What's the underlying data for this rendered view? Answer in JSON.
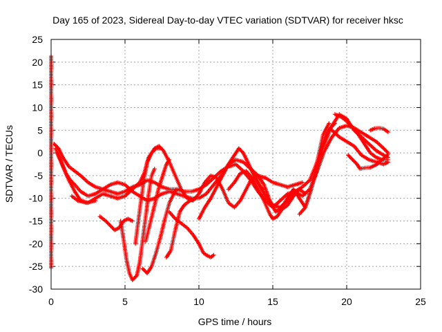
{
  "chart_data": {
    "type": "scatter",
    "title": "Day 165 of 2023, Sidereal Day-to-day VTEC variation (SDTVAR) for receiver hksc",
    "xlabel": "GPS time / hours",
    "ylabel": "SDTVAR / TECUs",
    "xlim": [
      0,
      25
    ],
    "ylim": [
      -30,
      25
    ],
    "xticks": [
      0,
      5,
      10,
      15,
      20,
      25
    ],
    "yticks": [
      -30,
      -25,
      -20,
      -15,
      -10,
      -5,
      0,
      5,
      10,
      15,
      20,
      25
    ],
    "grid": true,
    "legend": "none",
    "marker_color": "#ff0000",
    "series": [
      {
        "values": [
          [
            0.0,
            21.3
          ],
          [
            0.0,
            3.0
          ],
          [
            0.0,
            1.0
          ],
          [
            0.0,
            -6.0
          ],
          [
            0.0,
            -25.3
          ]
        ]
      },
      {
        "values": [
          [
            0.2,
            2.0
          ],
          [
            0.5,
            1.0
          ],
          [
            0.8,
            -1.0
          ],
          [
            1.2,
            -3.0
          ],
          [
            1.6,
            -4.0
          ],
          [
            2.0,
            -5.0
          ],
          [
            2.5,
            -6.5
          ],
          [
            3.0,
            -7.5
          ],
          [
            3.5,
            -8.0
          ],
          [
            4.0,
            -8.5
          ],
          [
            4.5,
            -9.0
          ],
          [
            5.0,
            -8.5
          ],
          [
            5.5,
            -7.5
          ],
          [
            6.0,
            -7.0
          ],
          [
            6.5,
            -6.0
          ],
          [
            7.0,
            -6.5
          ],
          [
            7.5,
            -7.5
          ],
          [
            8.0,
            -8.0
          ],
          [
            8.5,
            -8.0
          ],
          [
            9.0,
            -8.5
          ],
          [
            9.5,
            -8.5
          ],
          [
            10.0,
            -8.0
          ],
          [
            10.5,
            -7.0
          ],
          [
            11.0,
            -5.5
          ],
          [
            11.5,
            -4.0
          ],
          [
            12.0,
            -3.0
          ],
          [
            12.5,
            -2.5
          ],
          [
            13.0,
            -4.0
          ],
          [
            13.5,
            -6.0
          ],
          [
            14.0,
            -8.5
          ],
          [
            14.5,
            -10.5
          ],
          [
            15.0,
            -12.0
          ],
          [
            15.5,
            -10.5
          ],
          [
            16.0,
            -9.0
          ],
          [
            16.5,
            -8.5
          ],
          [
            17.0,
            -9.5
          ],
          [
            17.5,
            -8.0
          ],
          [
            18.0,
            -4.0
          ],
          [
            18.5,
            0.5
          ],
          [
            19.0,
            3.5
          ],
          [
            19.5,
            5.5
          ],
          [
            20.0,
            6.0
          ],
          [
            20.5,
            5.5
          ],
          [
            21.0,
            4.5
          ],
          [
            21.5,
            3.5
          ],
          [
            22.0,
            2.5
          ],
          [
            22.5,
            1.0
          ],
          [
            22.8,
            0.0
          ]
        ]
      },
      {
        "values": [
          [
            0.3,
            1.0
          ],
          [
            0.7,
            -2.0
          ],
          [
            1.0,
            -4.5
          ],
          [
            1.3,
            -6.0
          ],
          [
            1.6,
            -7.0
          ],
          [
            2.0,
            -8.5
          ],
          [
            2.5,
            -9.5
          ],
          [
            3.0,
            -9.0
          ],
          [
            3.5,
            -8.0
          ],
          [
            4.0,
            -7.0
          ],
          [
            4.5,
            -6.5
          ],
          [
            5.0,
            -7.0
          ],
          [
            5.5,
            -8.5
          ],
          [
            6.0,
            -9.5
          ],
          [
            6.5,
            -10.5
          ],
          [
            7.0,
            -10.0
          ],
          [
            7.5,
            -9.0
          ],
          [
            8.0,
            -8.5
          ],
          [
            8.5,
            -9.0
          ],
          [
            9.0,
            -9.5
          ],
          [
            9.5,
            -10.0
          ],
          [
            10.0,
            -10.0
          ],
          [
            10.5,
            -9.0
          ],
          [
            11.0,
            -7.0
          ],
          [
            11.5,
            -5.0
          ],
          [
            12.0,
            -2.5
          ],
          [
            12.5,
            -1.5
          ],
          [
            13.0,
            -2.0
          ],
          [
            13.5,
            -3.5
          ],
          [
            14.0,
            -6.5
          ],
          [
            14.5,
            -9.5
          ],
          [
            15.0,
            -11.5
          ],
          [
            15.5,
            -12.0
          ],
          [
            16.0,
            -10.5
          ],
          [
            16.5,
            -8.5
          ],
          [
            17.0,
            -7.5
          ],
          [
            17.5,
            -6.0
          ],
          [
            18.0,
            -2.0
          ],
          [
            18.5,
            2.0
          ],
          [
            19.0,
            6.0
          ],
          [
            19.5,
            8.5
          ],
          [
            20.0,
            7.5
          ],
          [
            20.5,
            5.0
          ],
          [
            21.0,
            3.5
          ],
          [
            21.5,
            2.0
          ],
          [
            22.0,
            0.5
          ],
          [
            22.5,
            -0.5
          ],
          [
            22.8,
            -1.0
          ]
        ]
      },
      {
        "values": [
          [
            0.4,
            0.0
          ],
          [
            0.8,
            -3.0
          ],
          [
            1.2,
            -6.0
          ],
          [
            1.6,
            -8.5
          ],
          [
            2.0,
            -10.5
          ],
          [
            2.5,
            -11.0
          ],
          [
            3.0,
            -10.0
          ],
          [
            3.5,
            -9.0
          ],
          [
            4.0,
            -9.5
          ],
          [
            4.5,
            -10.0
          ],
          [
            5.0,
            -9.5
          ],
          [
            5.5,
            -8.0
          ],
          [
            6.0,
            -6.5
          ],
          [
            6.3,
            -4.5
          ],
          [
            6.6,
            -1.0
          ],
          [
            7.0,
            1.0
          ],
          [
            7.3,
            1.5
          ],
          [
            7.6,
            0.5
          ],
          [
            8.0,
            -2.0
          ],
          [
            8.4,
            -5.0
          ],
          [
            8.8,
            -8.0
          ],
          [
            9.2,
            -10.0
          ],
          [
            9.6,
            -10.5
          ],
          [
            10.0,
            -9.0
          ],
          [
            10.4,
            -6.5
          ],
          [
            10.8,
            -5.0
          ],
          [
            11.2,
            -5.5
          ],
          [
            11.6,
            -8.0
          ],
          [
            12.0,
            -11.0
          ],
          [
            12.4,
            -12.0
          ],
          [
            12.8,
            -10.5
          ],
          [
            13.2,
            -8.0
          ],
          [
            13.6,
            -5.5
          ],
          [
            14.0,
            -5.0
          ],
          [
            14.4,
            -7.0
          ],
          [
            14.8,
            -10.5
          ],
          [
            15.2,
            -13.0
          ],
          [
            15.6,
            -12.0
          ],
          [
            16.0,
            -10.0
          ],
          [
            16.4,
            -8.0
          ],
          [
            16.8,
            -10.0
          ],
          [
            17.2,
            -12.0
          ],
          [
            17.6,
            -8.0
          ],
          [
            18.0,
            -2.0
          ],
          [
            18.4,
            4.0
          ],
          [
            18.8,
            6.5
          ]
        ]
      },
      {
        "values": [
          [
            1.4,
            -9.5
          ],
          [
            1.8,
            -10.5
          ],
          [
            2.4,
            -11.0
          ],
          [
            3.0,
            -10.5
          ]
        ]
      },
      {
        "values": [
          [
            3.3,
            -14.0
          ],
          [
            3.7,
            -15.0
          ],
          [
            4.0,
            -16.0
          ],
          [
            4.3,
            -17.0
          ],
          [
            4.6,
            -16.5
          ],
          [
            4.9,
            -15.0
          ],
          [
            5.2,
            -14.5
          ],
          [
            5.5,
            -15.0
          ]
        ]
      },
      {
        "values": [
          [
            4.7,
            -15.0
          ],
          [
            4.9,
            -19.0
          ],
          [
            5.1,
            -23.5
          ],
          [
            5.3,
            -26.5
          ],
          [
            5.5,
            -28.0
          ],
          [
            5.8,
            -27.0
          ],
          [
            6.0,
            -24.0
          ],
          [
            6.2,
            -19.0
          ],
          [
            6.4,
            -14.0
          ],
          [
            6.6,
            -9.0
          ],
          [
            6.8,
            -5.0
          ],
          [
            7.0,
            -3.5
          ]
        ]
      },
      {
        "values": [
          [
            5.7,
            -20.0
          ],
          [
            5.9,
            -15.0
          ],
          [
            6.1,
            -10.0
          ],
          [
            6.3,
            -5.5
          ],
          [
            6.5,
            -2.0
          ],
          [
            6.8,
            0.0
          ],
          [
            7.1,
            1.0
          ],
          [
            7.4,
            1.0
          ]
        ]
      },
      {
        "values": [
          [
            6.2,
            -25.5
          ],
          [
            6.5,
            -26.5
          ],
          [
            6.8,
            -25.0
          ],
          [
            7.1,
            -22.0
          ],
          [
            7.4,
            -18.5
          ],
          [
            7.7,
            -14.5
          ],
          [
            8.0,
            -11.0
          ],
          [
            8.3,
            -9.0
          ],
          [
            8.5,
            -8.0
          ]
        ]
      },
      {
        "values": [
          [
            6.4,
            -19.5
          ],
          [
            6.7,
            -15.5
          ],
          [
            7.0,
            -11.5
          ],
          [
            7.3,
            -7.5
          ],
          [
            7.6,
            -4.5
          ],
          [
            7.8,
            -2.5
          ],
          [
            8.0,
            -1.5
          ]
        ]
      },
      {
        "values": [
          [
            7.8,
            -23.0
          ],
          [
            8.1,
            -21.5
          ],
          [
            8.4,
            -17.0
          ],
          [
            8.7,
            -13.0
          ],
          [
            9.0,
            -11.5
          ],
          [
            9.4,
            -10.5
          ],
          [
            9.8,
            -10.0
          ]
        ]
      },
      {
        "values": [
          [
            8.0,
            -13.0
          ],
          [
            8.4,
            -14.5
          ],
          [
            8.8,
            -15.5
          ],
          [
            9.2,
            -16.5
          ],
          [
            9.6,
            -18.0
          ],
          [
            10.0,
            -20.0
          ],
          [
            10.3,
            -22.0
          ],
          [
            10.5,
            -22.5
          ],
          [
            10.8,
            -23.0
          ],
          [
            11.0,
            -22.5
          ]
        ]
      },
      {
        "values": [
          [
            10.0,
            -14.5
          ],
          [
            10.4,
            -12.0
          ],
          [
            10.8,
            -10.0
          ],
          [
            11.2,
            -7.5
          ],
          [
            11.6,
            -5.0
          ],
          [
            12.0,
            -2.5
          ],
          [
            12.4,
            -0.5
          ],
          [
            12.7,
            1.0
          ],
          [
            13.0,
            0.0
          ],
          [
            13.3,
            -2.0
          ],
          [
            13.6,
            -4.0
          ],
          [
            14.0,
            -6.5
          ],
          [
            14.3,
            -8.0
          ]
        ]
      },
      {
        "values": [
          [
            12.0,
            -8.0
          ],
          [
            12.4,
            -6.5
          ],
          [
            12.8,
            -4.5
          ],
          [
            13.2,
            -4.0
          ],
          [
            13.6,
            -5.5
          ],
          [
            14.0,
            -8.0
          ],
          [
            14.4,
            -10.5
          ],
          [
            14.8,
            -13.5
          ],
          [
            15.0,
            -14.5
          ],
          [
            15.3,
            -14.0
          ],
          [
            15.6,
            -12.5
          ],
          [
            16.0,
            -11.5
          ],
          [
            16.4,
            -9.5
          ],
          [
            16.8,
            -8.0
          ],
          [
            17.2,
            -9.0
          ]
        ]
      },
      {
        "values": [
          [
            13.5,
            -3.5
          ],
          [
            14.0,
            -5.0
          ],
          [
            14.5,
            -5.5
          ],
          [
            15.0,
            -6.5
          ],
          [
            15.5,
            -7.0
          ],
          [
            16.0,
            -7.5
          ],
          [
            16.5,
            -7.0
          ],
          [
            17.0,
            -6.5
          ]
        ]
      },
      {
        "values": [
          [
            16.8,
            -13.5
          ],
          [
            17.2,
            -12.0
          ],
          [
            17.6,
            -8.0
          ],
          [
            18.0,
            -3.5
          ],
          [
            18.3,
            1.0
          ],
          [
            18.6,
            4.0
          ],
          [
            18.9,
            5.5
          ],
          [
            19.2,
            6.5
          ]
        ]
      },
      {
        "values": [
          [
            19.0,
            5.0
          ],
          [
            19.5,
            3.5
          ],
          [
            20.0,
            2.5
          ],
          [
            20.5,
            1.5
          ],
          [
            21.0,
            -0.5
          ],
          [
            21.5,
            -1.5
          ],
          [
            22.0,
            -2.0
          ],
          [
            22.5,
            -2.5
          ],
          [
            22.8,
            -2.0
          ]
        ]
      },
      {
        "values": [
          [
            19.2,
            8.5
          ],
          [
            19.6,
            8.0
          ],
          [
            20.0,
            7.0
          ],
          [
            20.4,
            5.5
          ],
          [
            20.8,
            4.0
          ],
          [
            21.2,
            2.0
          ],
          [
            21.6,
            0.0
          ],
          [
            22.0,
            -1.0
          ],
          [
            22.4,
            -1.5
          ],
          [
            22.8,
            -1.5
          ]
        ]
      },
      {
        "values": [
          [
            20.1,
            -0.5
          ],
          [
            20.4,
            -1.5
          ],
          [
            20.7,
            -2.5
          ],
          [
            20.9,
            -3.5
          ],
          [
            21.2,
            -3.3
          ],
          [
            21.6,
            -3.2
          ],
          [
            22.0,
            -2.6
          ],
          [
            22.4,
            -1.5
          ],
          [
            22.8,
            -0.3
          ]
        ]
      },
      {
        "values": [
          [
            21.6,
            5.0
          ],
          [
            21.9,
            5.4
          ],
          [
            22.2,
            5.5
          ],
          [
            22.5,
            5.3
          ],
          [
            22.8,
            4.6
          ]
        ]
      }
    ]
  }
}
